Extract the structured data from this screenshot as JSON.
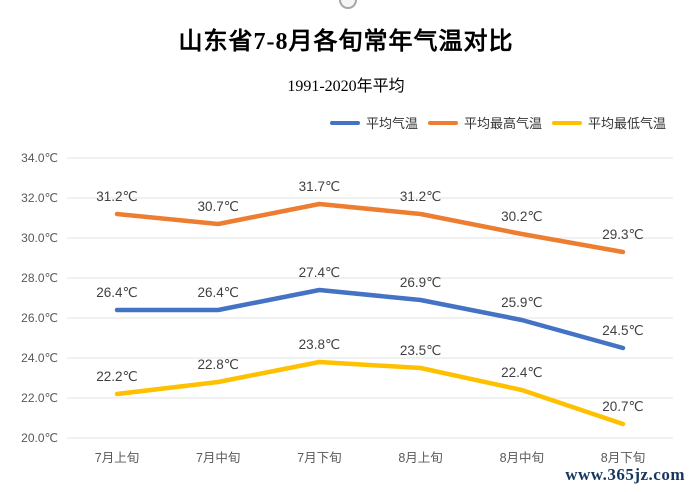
{
  "page": {
    "title": "山东省7-8月各旬常年气温对比",
    "subtitle": "1991-2020年平均",
    "watermark": "www.365jz.com"
  },
  "chart_data": {
    "type": "line",
    "title": "山东省7-8月各旬常年气温对比",
    "subtitle": "1991-2020年平均",
    "categories": [
      "7月上旬",
      "7月中旬",
      "7月下旬",
      "8月上旬",
      "8月中旬",
      "8月下旬"
    ],
    "series": [
      {
        "name": "平均气温",
        "color": "#4472C4",
        "values": [
          26.4,
          26.4,
          27.4,
          26.9,
          25.9,
          24.5
        ]
      },
      {
        "name": "平均最高气温",
        "color": "#ED7D31",
        "values": [
          31.2,
          30.7,
          31.7,
          31.2,
          30.2,
          29.3
        ]
      },
      {
        "name": "平均最低气温",
        "color": "#FFC000",
        "values": [
          22.2,
          22.8,
          23.8,
          23.5,
          22.4,
          20.7
        ]
      }
    ],
    "ylim": [
      20.0,
      34.0
    ],
    "ytick_step": 2.0,
    "ytick_labels": [
      "20.0℃",
      "22.0℃",
      "24.0℃",
      "26.0℃",
      "28.0℃",
      "30.0℃",
      "32.0℃",
      "34.0℃"
    ],
    "value_suffix": "℃",
    "grid": true,
    "legend_position": "top-right",
    "legend_order": [
      0,
      1,
      2
    ]
  },
  "colors": {
    "grid": "#E3E3E3",
    "axis_text": "#595959",
    "data_label": "#404040",
    "watermark": "#17375E"
  }
}
